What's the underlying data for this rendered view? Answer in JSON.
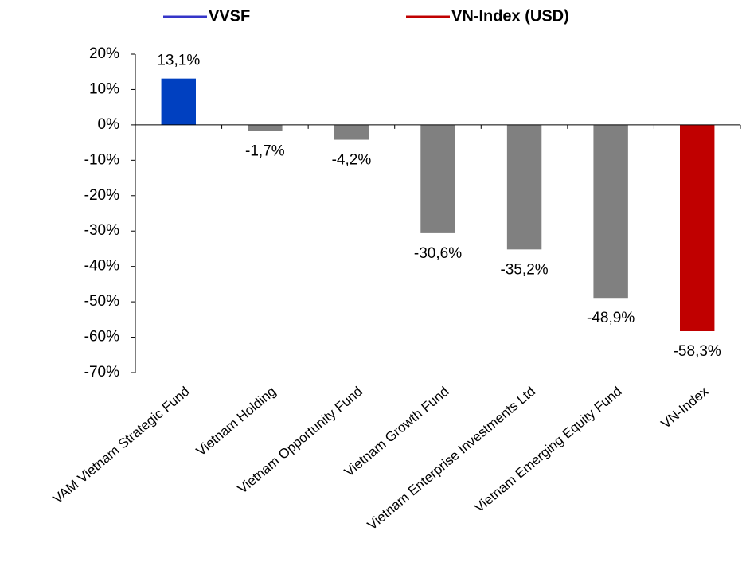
{
  "chart_data": {
    "type": "bar",
    "legend": [
      {
        "name": "VVSF",
        "color": "#3535c8"
      },
      {
        "name": "VN-Index (USD)",
        "color": "#c00000"
      }
    ],
    "categories": [
      "VAM Vietnam Strategic Fund",
      "Vietnam Holding",
      "Vietnam Opportunity Fund",
      "Vietnam Growth Fund",
      "Vietnam Enterprise Investments Ltd",
      "Vietnam Emerging Equity Fund",
      "VN-Index"
    ],
    "values": [
      13.1,
      -1.7,
      -4.2,
      -30.6,
      -35.2,
      -48.9,
      -58.3
    ],
    "value_labels": [
      "13,1%",
      "-1,7%",
      "-4,2%",
      "-30,6%",
      "-35,2%",
      "-48,9%",
      "-58,3%"
    ],
    "colors": [
      "#0040c0",
      "#808080",
      "#808080",
      "#808080",
      "#808080",
      "#808080",
      "#c00000"
    ],
    "ylim": [
      -70,
      20
    ],
    "yticks": [
      {
        "value": 20,
        "label": "20%"
      },
      {
        "value": 10,
        "label": "10%"
      },
      {
        "value": 0,
        "label": "0%"
      },
      {
        "value": -10,
        "label": "-10%"
      },
      {
        "value": -20,
        "label": "-20%"
      },
      {
        "value": -30,
        "label": "-30%"
      },
      {
        "value": -40,
        "label": "-40%"
      },
      {
        "value": -50,
        "label": "-50%"
      },
      {
        "value": -60,
        "label": "-60%"
      },
      {
        "value": -70,
        "label": "-70%"
      }
    ],
    "grid": false
  }
}
